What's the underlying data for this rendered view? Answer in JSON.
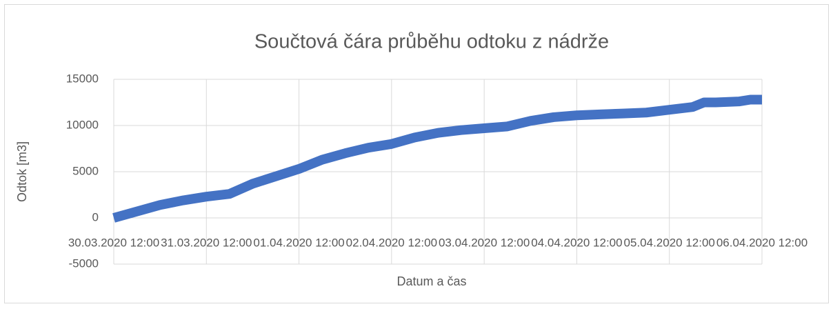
{
  "chart_data": {
    "type": "line",
    "title": "Součtová čára průběhu odtoku z nádrže",
    "x_label": "Datum a čas",
    "y_label": "Odtok [m3]",
    "x": [
      "2020-03-30T12:00",
      "2020-03-30T18:00",
      "2020-03-31T00:00",
      "2020-03-31T06:00",
      "2020-03-31T12:00",
      "2020-03-31T18:00",
      "2020-04-01T00:00",
      "2020-04-01T06:00",
      "2020-04-01T12:00",
      "2020-04-01T18:00",
      "2020-04-02T00:00",
      "2020-04-02T06:00",
      "2020-04-02T12:00",
      "2020-04-02T18:00",
      "2020-04-03T00:00",
      "2020-04-03T06:00",
      "2020-04-03T12:00",
      "2020-04-03T18:00",
      "2020-04-04T00:00",
      "2020-04-04T06:00",
      "2020-04-04T12:00",
      "2020-04-04T18:00",
      "2020-04-05T00:00",
      "2020-04-05T06:00",
      "2020-04-05T12:00",
      "2020-04-05T18:00",
      "2020-04-05T21:00",
      "2020-04-06T00:00",
      "2020-04-06T06:00",
      "2020-04-06T09:00",
      "2020-04-06T12:00"
    ],
    "series": [
      {
        "name": "Odtok",
        "color": "#4472c4",
        "values": [
          0,
          700,
          1400,
          1900,
          2300,
          2600,
          3700,
          4500,
          5300,
          6300,
          7000,
          7600,
          8000,
          8700,
          9200,
          9500,
          9700,
          9900,
          10500,
          10900,
          11100,
          11200,
          11300,
          11400,
          11700,
          12000,
          12500,
          12500,
          12600,
          12800,
          12800
        ]
      }
    ],
    "xlim": [
      "2020-03-30T12:00",
      "2020-04-06T12:00"
    ],
    "xticks": [
      {
        "value": "2020-03-30T12:00",
        "label": "30.03.2020 12:00"
      },
      {
        "value": "2020-03-31T12:00",
        "label": "31.03.2020 12:00"
      },
      {
        "value": "2020-04-01T12:00",
        "label": "01.04.2020 12:00"
      },
      {
        "value": "2020-04-02T12:00",
        "label": "02.04.2020 12:00"
      },
      {
        "value": "2020-04-03T12:00",
        "label": "03.04.2020 12:00"
      },
      {
        "value": "2020-04-04T12:00",
        "label": "04.04.2020 12:00"
      },
      {
        "value": "2020-04-05T12:00",
        "label": "05.04.2020 12:00"
      },
      {
        "value": "2020-04-06T12:00",
        "label": "06.04.2020 12:00"
      }
    ],
    "ylim": [
      -5000,
      15000
    ],
    "yticks": [
      -5000,
      0,
      5000,
      10000,
      15000
    ],
    "grid": true
  }
}
